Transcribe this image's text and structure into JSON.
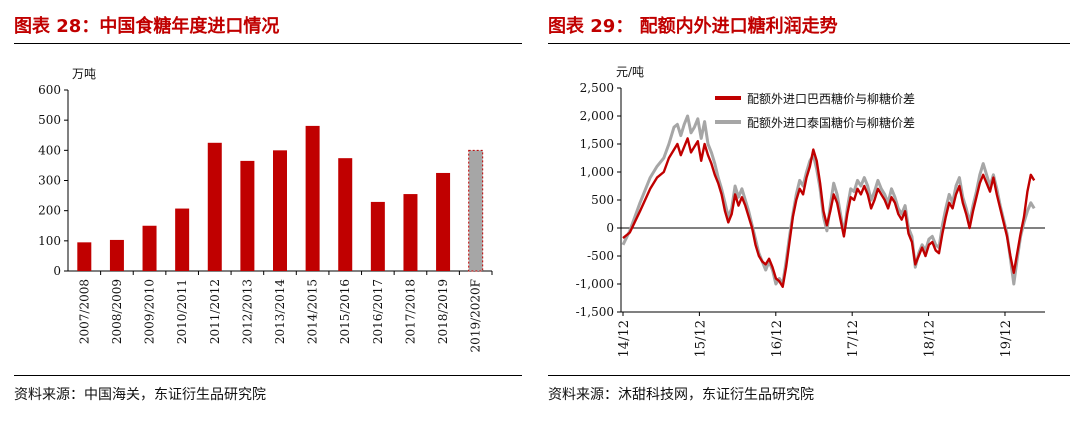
{
  "charts": [
    {
      "figure_title": "图表 28：中国食糖年度进口情况",
      "source": "资料来源：中国海关，东证衍生品研究院"
    },
    {
      "figure_title": "图表 29：  配额内外进口糖利润走势",
      "source": "资料来源：沐甜科技网，东证衍生品研究院"
    }
  ],
  "chart_data": [
    {
      "type": "bar",
      "unit_label": "万吨",
      "categories": [
        "2007/2008",
        "2008/2009",
        "2009/2010",
        "2010/2011",
        "2011/2012",
        "2012/2013",
        "2013/2014",
        "2014/2015",
        "2015/2016",
        "2016/2017",
        "2017/2018",
        "2018/2019",
        "2019/2020F"
      ],
      "values": [
        95,
        103,
        150,
        207,
        425,
        365,
        400,
        481,
        374,
        229,
        255,
        325,
        400
      ],
      "forecast_last": true,
      "ylim": [
        0,
        600
      ],
      "yticks": [
        0,
        100,
        200,
        300,
        400,
        500,
        600
      ],
      "colors": {
        "bar": "#c00000",
        "forecast": "#a6a6a6",
        "forecast_border": "#c00000"
      },
      "grid": false
    },
    {
      "type": "line",
      "unit_label": "元/吨",
      "x_tick_labels": [
        "14/12",
        "15/12",
        "16/12",
        "17/12",
        "18/12",
        "19/12"
      ],
      "ylim": [
        -1500,
        2500
      ],
      "yticks": [
        -1500,
        -1000,
        -500,
        0,
        500,
        1000,
        1500,
        2000,
        2500
      ],
      "legend_position": "top-right",
      "grid": false,
      "series": [
        {
          "name": "配额外进口巴西糖价与柳糖价差",
          "color": "#c00000",
          "points": [
            [
              0,
              -180
            ],
            [
              0.2,
              -80
            ],
            [
              0.5,
              300
            ],
            [
              0.8,
              700
            ],
            [
              1.0,
              900
            ],
            [
              1.2,
              1000
            ],
            [
              1.35,
              1250
            ],
            [
              1.5,
              1400
            ],
            [
              1.6,
              1500
            ],
            [
              1.7,
              1300
            ],
            [
              1.8,
              1450
            ],
            [
              1.9,
              1600
            ],
            [
              2.0,
              1350
            ],
            [
              2.1,
              1450
            ],
            [
              2.2,
              1550
            ],
            [
              2.3,
              1200
            ],
            [
              2.4,
              1500
            ],
            [
              2.5,
              1300
            ],
            [
              2.6,
              1150
            ],
            [
              2.7,
              950
            ],
            [
              2.8,
              800
            ],
            [
              2.9,
              600
            ],
            [
              3.0,
              300
            ],
            [
              3.1,
              100
            ],
            [
              3.2,
              250
            ],
            [
              3.3,
              600
            ],
            [
              3.4,
              400
            ],
            [
              3.5,
              550
            ],
            [
              3.6,
              400
            ],
            [
              3.7,
              200
            ],
            [
              3.8,
              0
            ],
            [
              3.9,
              -300
            ],
            [
              4.0,
              -500
            ],
            [
              4.1,
              -600
            ],
            [
              4.2,
              -650
            ],
            [
              4.3,
              -550
            ],
            [
              4.4,
              -700
            ],
            [
              4.5,
              -900
            ],
            [
              4.6,
              -950
            ],
            [
              4.7,
              -1050
            ],
            [
              4.8,
              -700
            ],
            [
              4.9,
              -250
            ],
            [
              5.0,
              200
            ],
            [
              5.1,
              500
            ],
            [
              5.2,
              700
            ],
            [
              5.3,
              600
            ],
            [
              5.4,
              900
            ],
            [
              5.5,
              1100
            ],
            [
              5.6,
              1400
            ],
            [
              5.7,
              1200
            ],
            [
              5.8,
              800
            ],
            [
              5.9,
              300
            ],
            [
              6.0,
              50
            ],
            [
              6.1,
              300
            ],
            [
              6.2,
              600
            ],
            [
              6.3,
              450
            ],
            [
              6.4,
              150
            ],
            [
              6.5,
              -150
            ],
            [
              6.6,
              250
            ],
            [
              6.7,
              550
            ],
            [
              6.8,
              500
            ],
            [
              6.9,
              700
            ],
            [
              7.0,
              600
            ],
            [
              7.1,
              750
            ],
            [
              7.2,
              600
            ],
            [
              7.3,
              350
            ],
            [
              7.4,
              500
            ],
            [
              7.5,
              700
            ],
            [
              7.6,
              600
            ],
            [
              7.7,
              500
            ],
            [
              7.8,
              350
            ],
            [
              7.9,
              550
            ],
            [
              8.0,
              450
            ],
            [
              8.1,
              250
            ],
            [
              8.2,
              150
            ],
            [
              8.3,
              300
            ],
            [
              8.4,
              -100
            ],
            [
              8.5,
              -250
            ],
            [
              8.6,
              -650
            ],
            [
              8.7,
              -500
            ],
            [
              8.8,
              -350
            ],
            [
              8.9,
              -500
            ],
            [
              9.0,
              -300
            ],
            [
              9.1,
              -250
            ],
            [
              9.2,
              -400
            ],
            [
              9.3,
              -450
            ],
            [
              9.4,
              -100
            ],
            [
              9.5,
              200
            ],
            [
              9.6,
              450
            ],
            [
              9.7,
              350
            ],
            [
              9.8,
              600
            ],
            [
              9.9,
              750
            ],
            [
              10.0,
              450
            ],
            [
              10.1,
              250
            ],
            [
              10.2,
              0
            ],
            [
              10.3,
              300
            ],
            [
              10.4,
              550
            ],
            [
              10.5,
              800
            ],
            [
              10.6,
              950
            ],
            [
              10.7,
              800
            ],
            [
              10.8,
              650
            ],
            [
              10.9,
              900
            ],
            [
              11.0,
              600
            ],
            [
              11.1,
              350
            ],
            [
              11.2,
              100
            ],
            [
              11.3,
              -150
            ],
            [
              11.4,
              -500
            ],
            [
              11.5,
              -800
            ],
            [
              11.6,
              -450
            ],
            [
              11.7,
              -100
            ],
            [
              11.8,
              200
            ],
            [
              11.9,
              650
            ],
            [
              12.0,
              950
            ],
            [
              12.1,
              850
            ]
          ]
        },
        {
          "name": "配额外进口泰国糖价与柳糖价差",
          "color": "#a6a6a6",
          "points": [
            [
              0,
              -300
            ],
            [
              0.2,
              -50
            ],
            [
              0.5,
              450
            ],
            [
              0.8,
              900
            ],
            [
              1.0,
              1100
            ],
            [
              1.2,
              1250
            ],
            [
              1.35,
              1500
            ],
            [
              1.5,
              1800
            ],
            [
              1.6,
              1850
            ],
            [
              1.7,
              1650
            ],
            [
              1.8,
              1850
            ],
            [
              1.9,
              2000
            ],
            [
              2.0,
              1700
            ],
            [
              2.1,
              1800
            ],
            [
              2.2,
              1950
            ],
            [
              2.3,
              1600
            ],
            [
              2.4,
              1900
            ],
            [
              2.5,
              1500
            ],
            [
              2.6,
              1350
            ],
            [
              2.7,
              1150
            ],
            [
              2.8,
              900
            ],
            [
              2.9,
              700
            ],
            [
              3.0,
              450
            ],
            [
              3.1,
              200
            ],
            [
              3.2,
              350
            ],
            [
              3.3,
              750
            ],
            [
              3.4,
              550
            ],
            [
              3.5,
              700
            ],
            [
              3.6,
              500
            ],
            [
              3.7,
              300
            ],
            [
              3.8,
              50
            ],
            [
              3.9,
              -200
            ],
            [
              4.0,
              -450
            ],
            [
              4.1,
              -600
            ],
            [
              4.2,
              -750
            ],
            [
              4.3,
              -600
            ],
            [
              4.4,
              -750
            ],
            [
              4.5,
              -1000
            ],
            [
              4.6,
              -900
            ],
            [
              4.7,
              -1000
            ],
            [
              4.8,
              -600
            ],
            [
              4.9,
              -150
            ],
            [
              5.0,
              250
            ],
            [
              5.1,
              600
            ],
            [
              5.2,
              850
            ],
            [
              5.3,
              750
            ],
            [
              5.4,
              1000
            ],
            [
              5.5,
              1200
            ],
            [
              5.6,
              1300
            ],
            [
              5.7,
              1050
            ],
            [
              5.8,
              700
            ],
            [
              5.9,
              200
            ],
            [
              6.0,
              -50
            ],
            [
              6.1,
              400
            ],
            [
              6.2,
              800
            ],
            [
              6.3,
              600
            ],
            [
              6.4,
              250
            ],
            [
              6.5,
              -100
            ],
            [
              6.6,
              350
            ],
            [
              6.7,
              700
            ],
            [
              6.8,
              650
            ],
            [
              6.9,
              850
            ],
            [
              7.0,
              750
            ],
            [
              7.1,
              900
            ],
            [
              7.2,
              750
            ],
            [
              7.3,
              500
            ],
            [
              7.4,
              650
            ],
            [
              7.5,
              850
            ],
            [
              7.6,
              700
            ],
            [
              7.7,
              600
            ],
            [
              7.8,
              450
            ],
            [
              7.9,
              700
            ],
            [
              8.0,
              550
            ],
            [
              8.1,
              350
            ],
            [
              8.2,
              250
            ],
            [
              8.3,
              400
            ],
            [
              8.4,
              0
            ],
            [
              8.5,
              -150
            ],
            [
              8.6,
              -700
            ],
            [
              8.7,
              -450
            ],
            [
              8.8,
              -300
            ],
            [
              8.9,
              -400
            ],
            [
              9.0,
              -200
            ],
            [
              9.1,
              -150
            ],
            [
              9.2,
              -300
            ],
            [
              9.3,
              -350
            ],
            [
              9.4,
              50
            ],
            [
              9.5,
              350
            ],
            [
              9.6,
              600
            ],
            [
              9.7,
              450
            ],
            [
              9.8,
              750
            ],
            [
              9.9,
              900
            ],
            [
              10.0,
              550
            ],
            [
              10.1,
              350
            ],
            [
              10.2,
              100
            ],
            [
              10.3,
              400
            ],
            [
              10.4,
              650
            ],
            [
              10.5,
              950
            ],
            [
              10.6,
              1150
            ],
            [
              10.7,
              950
            ],
            [
              10.8,
              750
            ],
            [
              10.9,
              950
            ],
            [
              11.0,
              700
            ],
            [
              11.1,
              400
            ],
            [
              11.2,
              150
            ],
            [
              11.3,
              -100
            ],
            [
              11.4,
              -550
            ],
            [
              11.5,
              -1000
            ],
            [
              11.6,
              -550
            ],
            [
              11.7,
              -150
            ],
            [
              11.8,
              100
            ],
            [
              11.9,
              300
            ],
            [
              12.0,
              450
            ],
            [
              12.1,
              350
            ]
          ]
        }
      ]
    }
  ]
}
